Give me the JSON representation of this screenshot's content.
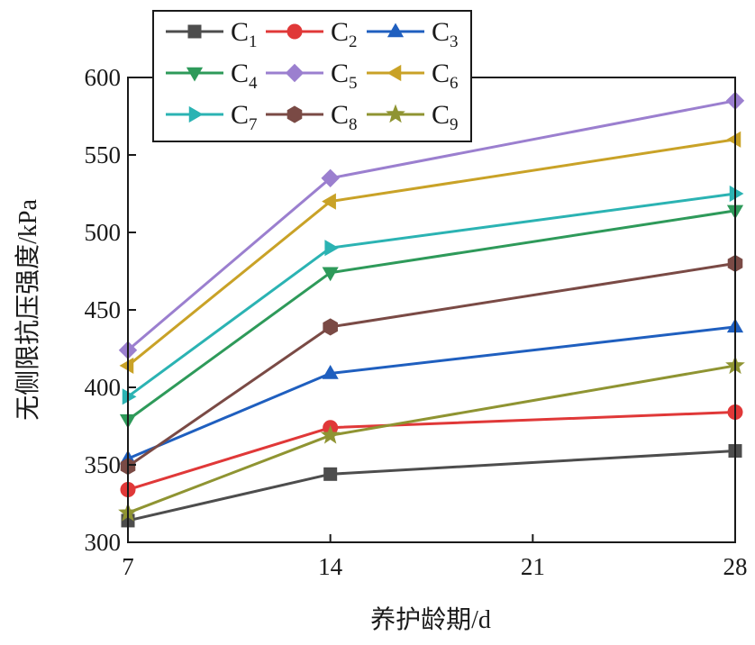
{
  "chart_data": {
    "type": "line",
    "xlabel": "养护龄期/d",
    "ylabel": "无侧限抗压强度/kPa",
    "title": "",
    "x": [
      7,
      14,
      28
    ],
    "xticks": [
      7,
      14,
      21,
      28
    ],
    "xlim": [
      7,
      28
    ],
    "yticks": [
      300,
      350,
      400,
      450,
      500,
      550,
      600
    ],
    "ylim": [
      300,
      600
    ],
    "grid": false,
    "legend_position": "top-left",
    "legend_columns": 3,
    "series": [
      {
        "name": "C",
        "sub": "1",
        "values": [
          314,
          344,
          359
        ],
        "color": "#4d4d4d",
        "marker": "square"
      },
      {
        "name": "C",
        "sub": "2",
        "values": [
          334,
          374,
          384
        ],
        "color": "#e03838",
        "marker": "circle"
      },
      {
        "name": "C",
        "sub": "3",
        "values": [
          354,
          409,
          439
        ],
        "color": "#1f5fbf",
        "marker": "triangle-up"
      },
      {
        "name": "C",
        "sub": "4",
        "values": [
          379,
          474,
          514
        ],
        "color": "#2e9a5a",
        "marker": "triangle-down"
      },
      {
        "name": "C",
        "sub": "5",
        "values": [
          424,
          535,
          585
        ],
        "color": "#9b7fcf",
        "marker": "diamond"
      },
      {
        "name": "C",
        "sub": "6",
        "values": [
          414,
          520,
          560
        ],
        "color": "#c9a227",
        "marker": "triangle-left"
      },
      {
        "name": "C",
        "sub": "7",
        "values": [
          394,
          490,
          525
        ],
        "color": "#2bb3b3",
        "marker": "triangle-right"
      },
      {
        "name": "C",
        "sub": "8",
        "values": [
          349,
          439,
          480
        ],
        "color": "#7a4a45",
        "marker": "hexagon"
      },
      {
        "name": "C",
        "sub": "9",
        "values": [
          319,
          369,
          414
        ],
        "color": "#8f9432",
        "marker": "star"
      }
    ]
  }
}
